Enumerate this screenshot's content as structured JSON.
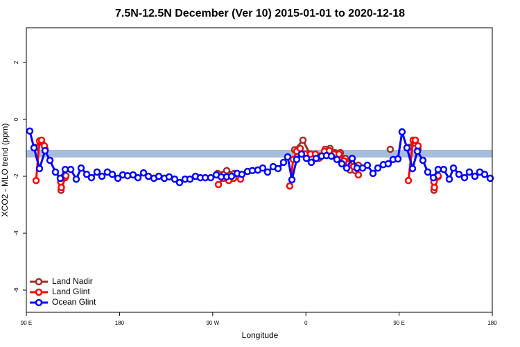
{
  "chart_data": {
    "type": "line",
    "title": "7.5N-12.5N December (Ver 10)   2015-01-01 to 2020-12-18",
    "xlabel": "Longitude",
    "ylabel": "XCO2 - MLO trend (ppm)",
    "xlim": [
      90,
      540
    ],
    "ylim": [
      -6.78,
      3.22
    ],
    "xticks": [
      {
        "value": 90,
        "label": "90 E"
      },
      {
        "value": 180,
        "label": "180"
      },
      {
        "value": 270,
        "label": "90 W"
      },
      {
        "value": 360,
        "label": "0"
      },
      {
        "value": 450,
        "label": "90 E"
      },
      {
        "value": 540,
        "label": "180"
      }
    ],
    "yticks": [
      -6,
      -4,
      -2,
      0,
      2
    ],
    "band": [
      -1.34,
      -1.07
    ],
    "band_color": "#a7bddb",
    "legend": "bottom-left",
    "series": [
      {
        "name": "Land Nadir",
        "color": "#a52a2a",
        "x": [
          99.4,
          104.7,
          108.1,
          null,
          123.5,
          127.5,
          null,
          274.8,
          283.5,
          290.9,
          null,
          349.1,
          357.2,
          363.9,
          372.6,
          378.6,
          383.3,
          388,
          393.3,
          398,
          402.7,
          407.4,
          410.7,
          null,
          441.5,
          null,
          459.6,
          464.3,
          468.3,
          null,
          483.7,
          487.7
        ],
        "values": [
          -0.98,
          -0.8,
          -1.05,
          null,
          -2.49,
          -2.05,
          null,
          -1.9,
          -1.8,
          -1.9,
          null,
          -1.07,
          -0.73,
          -1.22,
          -1.37,
          -1.05,
          -1.02,
          -1.17,
          -1.17,
          -1.37,
          -1.78,
          -1.8,
          -1.61,
          null,
          -1.05,
          null,
          -0.98,
          -0.83,
          -1.05,
          null,
          -2.49,
          -2.02
        ]
      },
      {
        "name": "Land Glint",
        "color": "#ff0000",
        "x": [
          99.4,
          102.7,
          104.7,
          107.4,
          null,
          123.2,
          123.8,
          128.2,
          null,
          275.5,
          280.2,
          285.5,
          290.2,
          296.9,
          null,
          344.4,
          347.8,
          351.1,
          354.5,
          359.2,
          364.5,
          369.2,
          373.9,
          377.9,
          382.6,
          387.3,
          392,
          396.7,
          401.4,
          406.1,
          410.7,
          null,
          459,
          463.6,
          465.7,
          468.3,
          null,
          483.7,
          484.1,
          487.7
        ],
        "values": [
          -2.15,
          -0.76,
          -0.73,
          -0.93,
          null,
          -2.2,
          -2.39,
          -1.98,
          null,
          -2.29,
          -2.07,
          -2.15,
          -2.07,
          -2.1,
          null,
          -2.34,
          -1.41,
          -1.12,
          -1.02,
          -1.22,
          -1.22,
          -1.22,
          -1.29,
          -1.12,
          -1.1,
          -1.22,
          -1.22,
          -1.46,
          -1.56,
          -1.66,
          -1.95,
          null,
          -2.15,
          -0.73,
          -0.73,
          -0.93,
          null,
          -2.2,
          -2.39,
          -1.98
        ]
      },
      {
        "name": "Ocean Glint",
        "color": "#0000ff",
        "x": [
          93.3,
          97.4,
          102.7,
          108.1,
          112.8,
          118.1,
          122.8,
          127.5,
          132.9,
          138.2,
          142.9,
          148.3,
          152.9,
          158.3,
          163,
          168.3,
          173,
          178.4,
          183.1,
          187.8,
          193.1,
          197.8,
          203.2,
          207.9,
          213.2,
          217.9,
          223.3,
          227.9,
          233.3,
          238,
          243.3,
          248,
          253.4,
          258.1,
          262.8,
          268.1,
          273.5,
          278.2,
          283.5,
          288.2,
          293.6,
          298.2,
          303.6,
          308.3,
          313.6,
          318.3,
          323,
          328.4,
          333.1,
          338.4,
          342.4,
          346.5,
          351.1,
          355.8,
          360.5,
          365.2,
          369.9,
          375.2,
          379.9,
          384.6,
          390,
          394.7,
          399.4,
          404.7,
          409.4,
          414.8,
          419.4,
          424.8,
          429.5,
          434.8,
          439.5,
          444.2,
          448.9,
          452.9,
          457.6,
          463,
          467.7,
          473,
          477.7,
          483.1,
          487.7,
          493.1,
          498.5,
          502.5,
          507.8,
          513.2,
          517.9,
          523.2,
          527.9,
          532.6,
          538
        ],
        "values": [
          -0.41,
          -1.0,
          -1.73,
          -1.1,
          -1.44,
          -1.85,
          -2.07,
          -1.76,
          -1.76,
          -2.1,
          -1.71,
          -1.93,
          -2.05,
          -1.85,
          -2.0,
          -1.85,
          -1.93,
          -2.07,
          -1.95,
          -1.98,
          -1.95,
          -2.05,
          -1.88,
          -2.0,
          -2.07,
          -2.0,
          -2.07,
          -2.02,
          -2.1,
          -2.22,
          -2.1,
          -2.1,
          -2.0,
          -2.05,
          -2.05,
          -2.05,
          -1.95,
          -2.02,
          -2.02,
          -2.0,
          -1.9,
          -1.93,
          -1.83,
          -1.8,
          -1.78,
          -1.71,
          -1.85,
          -1.66,
          -1.73,
          -1.51,
          -1.32,
          -2.12,
          -1.41,
          -1.22,
          -1.37,
          -1.51,
          -1.37,
          -1.29,
          -1.27,
          -1.29,
          -1.41,
          -1.56,
          -1.71,
          -1.37,
          -1.71,
          -1.71,
          -1.61,
          -1.9,
          -1.71,
          -1.59,
          -1.56,
          -1.41,
          -1.39,
          -0.44,
          -1.0,
          -1.73,
          -1.12,
          -1.44,
          -1.85,
          -2.05,
          -1.76,
          -1.76,
          -2.1,
          -1.71,
          -1.93,
          -2.05,
          -1.85,
          -2.0,
          -1.85,
          -1.93,
          -2.07
        ]
      }
    ]
  }
}
